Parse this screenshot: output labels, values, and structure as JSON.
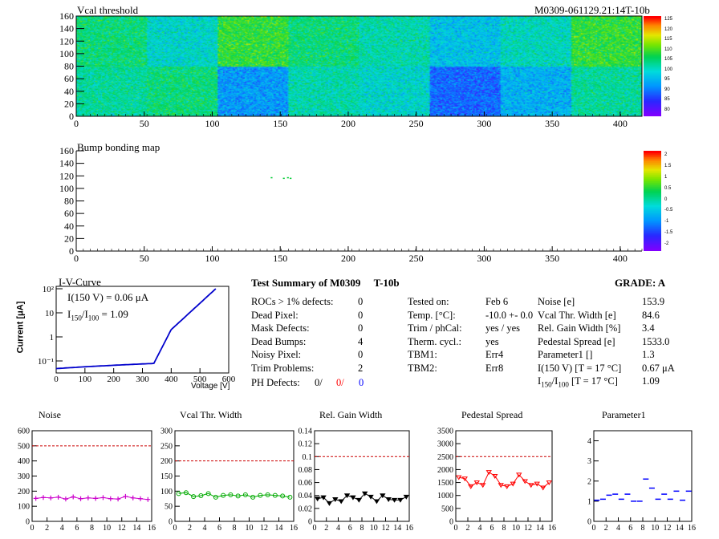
{
  "header": {
    "vcal_title": "Vcal threshold",
    "module_id": "M0309-061129.21:14T-10b",
    "bump_title": "Bump bonding map"
  },
  "vcal_map": {
    "x_ticks": [
      "0",
      "50",
      "100",
      "150",
      "200",
      "250",
      "300",
      "350",
      "400"
    ],
    "y_ticks": [
      "0",
      "20",
      "40",
      "60",
      "80",
      "100",
      "120",
      "140",
      "160"
    ],
    "colorbar": [
      "80",
      "85",
      "90",
      "95",
      "100",
      "105",
      "110",
      "115",
      "120",
      "125"
    ],
    "roc_means_top": [
      108,
      103,
      112,
      108,
      105,
      100,
      104,
      112
    ],
    "roc_means_bottom": [
      106,
      108,
      96,
      105,
      103,
      92,
      98,
      106
    ]
  },
  "bump_map": {
    "x_ticks": [
      "0",
      "50",
      "100",
      "150",
      "200",
      "250",
      "300",
      "350",
      "400"
    ],
    "y_ticks": [
      "0",
      "20",
      "40",
      "60",
      "80",
      "100",
      "120",
      "140",
      "160"
    ],
    "colorbar": [
      "-2",
      "-1.5",
      "-1",
      "-0.5",
      "0",
      "0.5",
      "1",
      "1.5",
      "2"
    ]
  },
  "iv": {
    "title": "I-V-Curve",
    "line1": "I(150 V) = 0.06 μA",
    "line2_a": "I",
    "line2_sub1": "150",
    "line2_b": "/I",
    "line2_sub2": "100",
    "line2_c": " =  1.09",
    "xlabel": "Voltage [V]",
    "ylabel": "Current [μA]",
    "x_ticks": [
      "0",
      "100",
      "200",
      "300",
      "400",
      "500",
      "600"
    ],
    "y_ticks": [
      "10⁻¹",
      "1",
      "10",
      "10²"
    ]
  },
  "summary": {
    "title": "Test Summary of M0309",
    "tag": "T-10b",
    "grade_label": "GRADE:  A",
    "left": [
      {
        "label": "ROCs > 1% defects:",
        "value": "0"
      },
      {
        "label": "Dead Pixel:",
        "value": "0"
      },
      {
        "label": "Mask Defects:",
        "value": "0"
      },
      {
        "label": "Dead Bumps:",
        "value": "4"
      },
      {
        "label": "Noisy Pixel:",
        "value": "0"
      },
      {
        "label": "Trim Problems:",
        "value": "2"
      }
    ],
    "ph_label": "PH Defects:",
    "ph_values": [
      "0/",
      "0/",
      "0"
    ],
    "ph_colors": [
      "#000000",
      "#ff0000",
      "#0000ff"
    ],
    "middle": [
      {
        "label": "Tested on:",
        "value": "Feb 6"
      },
      {
        "label": "Temp. [°C]:",
        "value": "-10.0 +- 0.0"
      },
      {
        "label": "Trim / phCal:",
        "value": "yes / yes"
      },
      {
        "label": "Therm. cycl.:",
        "value": "yes"
      },
      {
        "label": "TBM1:",
        "value": "Err4"
      },
      {
        "label": "TBM2:",
        "value": "Err8"
      }
    ],
    "right": [
      {
        "label": "Noise [e]",
        "value": "153.9"
      },
      {
        "label": "Vcal Thr. Width [e]",
        "value": "84.6"
      },
      {
        "label": "Rel. Gain Width [%]",
        "value": "3.4"
      },
      {
        "label": "Pedestal Spread [e]",
        "value": "1533.0"
      },
      {
        "label": "Parameter1 []",
        "value": "1.3"
      },
      {
        "label": "I(150 V) [T = 17 °C]",
        "value": "0.67 μA"
      }
    ],
    "ratio_label_a": "I",
    "ratio_sub1": "150",
    "ratio_label_b": "/I",
    "ratio_sub2": "100",
    "ratio_label_c": "  [T = 17 °C]",
    "ratio_value": "1.09"
  },
  "chart_data": [
    {
      "type": "line",
      "title": "Noise",
      "color": "#cc00cc",
      "marker": "plus",
      "x": [
        0,
        1,
        2,
        3,
        4,
        5,
        6,
        7,
        8,
        9,
        10,
        11,
        12,
        13,
        14,
        15
      ],
      "values": [
        152,
        158,
        155,
        160,
        148,
        162,
        150,
        155,
        152,
        157,
        150,
        148,
        165,
        155,
        150,
        145
      ],
      "xlim": [
        0,
        16
      ],
      "ylim": [
        0,
        600
      ],
      "threshold": 500,
      "y_ticks": [
        0,
        100,
        200,
        300,
        400,
        500,
        600
      ],
      "x_ticks": [
        0,
        2,
        4,
        6,
        8,
        10,
        12,
        14,
        16
      ]
    },
    {
      "type": "line",
      "title": "Vcal Thr. Width",
      "color": "#00aa00",
      "marker": "circle",
      "x": [
        0,
        1,
        2,
        3,
        4,
        5,
        6,
        7,
        8,
        9,
        10,
        11,
        12,
        13,
        14,
        15
      ],
      "values": [
        92,
        95,
        82,
        85,
        92,
        80,
        86,
        88,
        84,
        88,
        80,
        86,
        88,
        86,
        84,
        80
      ],
      "xlim": [
        0,
        16
      ],
      "ylim": [
        0,
        300
      ],
      "threshold": 200,
      "y_ticks": [
        0,
        50,
        100,
        150,
        200,
        250,
        300
      ],
      "x_ticks": [
        0,
        2,
        4,
        6,
        8,
        10,
        12,
        14,
        16
      ]
    },
    {
      "type": "line",
      "title": "Rel. Gain Width",
      "color": "#000000",
      "marker": "triangle",
      "x": [
        0,
        1,
        2,
        3,
        4,
        5,
        6,
        7,
        8,
        9,
        10,
        11,
        12,
        13,
        14,
        15
      ],
      "values": [
        0.035,
        0.037,
        0.028,
        0.034,
        0.031,
        0.04,
        0.037,
        0.033,
        0.043,
        0.038,
        0.031,
        0.04,
        0.034,
        0.033,
        0.033,
        0.038
      ],
      "xlim": [
        0,
        16
      ],
      "ylim": [
        0,
        0.14
      ],
      "threshold": 0.1,
      "y_ticks": [
        0,
        0.02,
        0.04,
        0.06,
        0.08,
        0.1,
        0.12,
        0.14
      ],
      "x_ticks": [
        0,
        2,
        4,
        6,
        8,
        10,
        12,
        14,
        16
      ]
    },
    {
      "type": "line",
      "title": "Pedestal Spread",
      "color": "#ff0000",
      "marker": "triangle",
      "x": [
        0,
        1,
        2,
        3,
        4,
        5,
        6,
        7,
        8,
        9,
        10,
        11,
        12,
        13,
        14,
        15
      ],
      "values": [
        1700,
        1650,
        1350,
        1500,
        1400,
        1900,
        1750,
        1400,
        1350,
        1450,
        1800,
        1550,
        1400,
        1450,
        1300,
        1500
      ],
      "xlim": [
        0,
        16
      ],
      "ylim": [
        0,
        3500
      ],
      "threshold": 2500,
      "y_ticks": [
        0,
        500,
        1000,
        1500,
        2000,
        2500,
        3000,
        3500
      ],
      "x_ticks": [
        0,
        2,
        4,
        6,
        8,
        10,
        12,
        14,
        16
      ]
    },
    {
      "type": "scatter",
      "title": "Parameter1",
      "color": "#0000ff",
      "marker": "dash",
      "x": [
        0,
        1,
        2,
        3,
        4,
        5,
        6,
        7,
        8,
        9,
        10,
        11,
        12,
        13,
        14,
        15
      ],
      "values": [
        1.05,
        1.1,
        1.3,
        1.35,
        1.1,
        1.35,
        1.0,
        1.0,
        2.1,
        1.65,
        1.1,
        1.35,
        1.1,
        1.5,
        1.05,
        1.5
      ],
      "xlim": [
        0,
        16
      ],
      "ylim": [
        0,
        4.5
      ],
      "y_ticks": [
        0,
        1,
        2,
        3,
        4
      ],
      "x_ticks": [
        0,
        2,
        4,
        6,
        8,
        10,
        12,
        14,
        16
      ]
    }
  ]
}
